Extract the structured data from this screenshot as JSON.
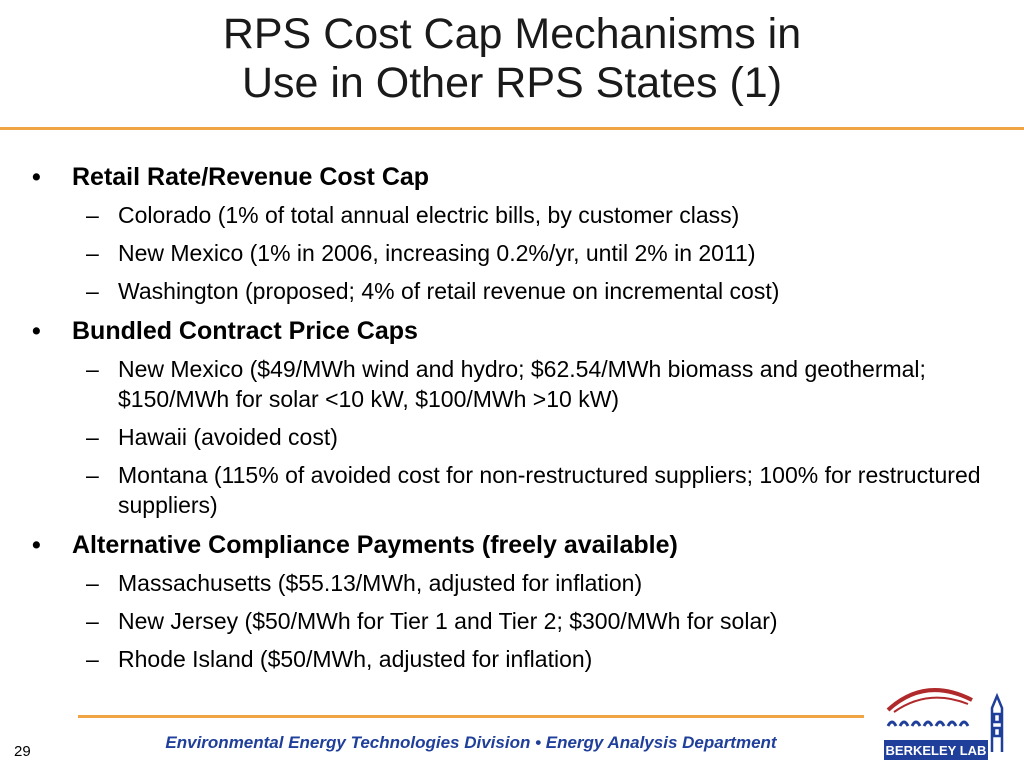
{
  "title": {
    "line1": "RPS Cost Cap Mechanisms in",
    "line2": "Use in Other RPS States (1)"
  },
  "bullets": [
    {
      "text": "Retail Rate/Revenue Cost Cap",
      "subs": [
        "Colorado (1% of total annual electric bills, by customer class)",
        "New Mexico (1% in 2006, increasing 0.2%/yr, until 2% in 2011)",
        "Washington (proposed; 4% of retail revenue on incremental cost)"
      ]
    },
    {
      "text": "Bundled Contract Price Caps",
      "subs": [
        "New Mexico ($49/MWh wind and hydro; $62.54/MWh biomass and geothermal; $150/MWh for solar <10 kW, $100/MWh >10 kW)",
        "Hawaii (avoided cost)",
        "Montana (115% of avoided cost for non-restructured suppliers; 100% for restructured suppliers)"
      ]
    },
    {
      "text": "Alternative Compliance Payments (freely available)",
      "subs": [
        "Massachusetts ($55.13/MWh, adjusted for inflation)",
        "New Jersey ($50/MWh for Tier 1 and Tier 2; $300/MWh for solar)",
        "Rhode Island ($50/MWh, adjusted for inflation)"
      ]
    }
  ],
  "bullet_glyph": "•",
  "dash_glyph": "–",
  "footer": {
    "text": "Environmental Energy Technologies Division  •  Energy Analysis Department"
  },
  "page_number": "29",
  "logo": {
    "text": "BERKELEY LAB",
    "icon": "berkeley-lab-logo"
  },
  "colors": {
    "accent_rule": "#f0a443",
    "footer_text": "#1f3f9a",
    "logo_red": "#b0292b",
    "logo_blue": "#1f3f9a"
  }
}
